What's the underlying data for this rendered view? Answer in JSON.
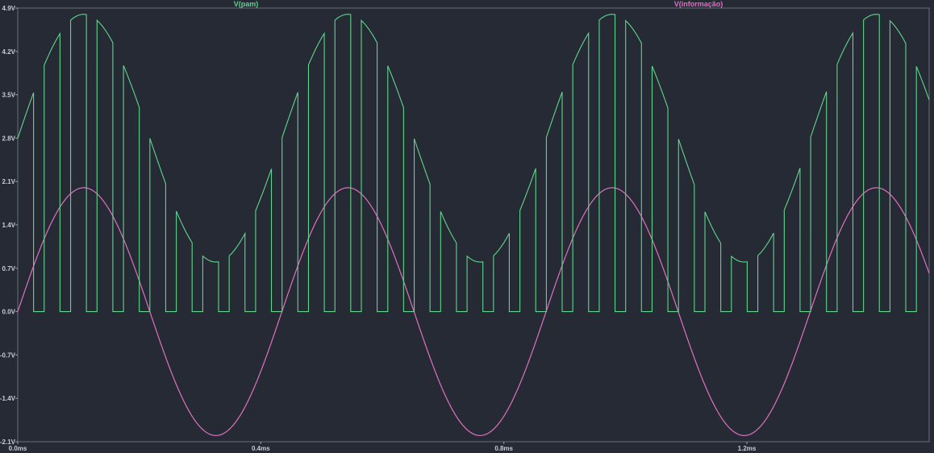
{
  "chart_data": {
    "type": "line",
    "title": "",
    "xlabel": "",
    "ylabel": "",
    "xlim": [
      0,
      1.5
    ],
    "ylim": [
      -2.1,
      4.9
    ],
    "x_unit": "ms",
    "y_unit": "V",
    "grid": false,
    "legend_position": "top",
    "x_ticks": [
      {
        "value": 0.0,
        "label": "0.0ms"
      },
      {
        "value": 0.4,
        "label": "0.4ms"
      },
      {
        "value": 0.8,
        "label": "0.8ms"
      },
      {
        "value": 1.2,
        "label": "1.2ms"
      }
    ],
    "y_ticks": [
      {
        "value": 4.9,
        "label": "4.9V"
      },
      {
        "value": 4.2,
        "label": "4.2V"
      },
      {
        "value": 3.5,
        "label": "3.5V"
      },
      {
        "value": 2.8,
        "label": "2.8V"
      },
      {
        "value": 2.1,
        "label": "2.1V"
      },
      {
        "value": 1.4,
        "label": "1.4V"
      },
      {
        "value": 0.7,
        "label": "0.7V"
      },
      {
        "value": 0.0,
        "label": "0.0V"
      },
      {
        "value": -0.7,
        "label": "-0.7V"
      },
      {
        "value": -1.4,
        "label": "-1.4V"
      },
      {
        "value": -2.1,
        "label": "-2.1V"
      }
    ],
    "series": [
      {
        "name": "V(pam)",
        "color": "#5fd68a",
        "description_values": {
          "offset": 2.8,
          "amplitude": 2.0,
          "frequency_khz": 2.3,
          "pulse_period_ms": 0.0435,
          "pulse_width_ms": 0.026,
          "low_level": 0.0
        }
      },
      {
        "name": "V(informação)",
        "color": "#e070c0",
        "description_values": {
          "offset": 0.0,
          "amplitude": 2.0,
          "frequency_khz": 2.3,
          "low_level": -2.0,
          "high_level": 2.0
        }
      }
    ]
  }
}
